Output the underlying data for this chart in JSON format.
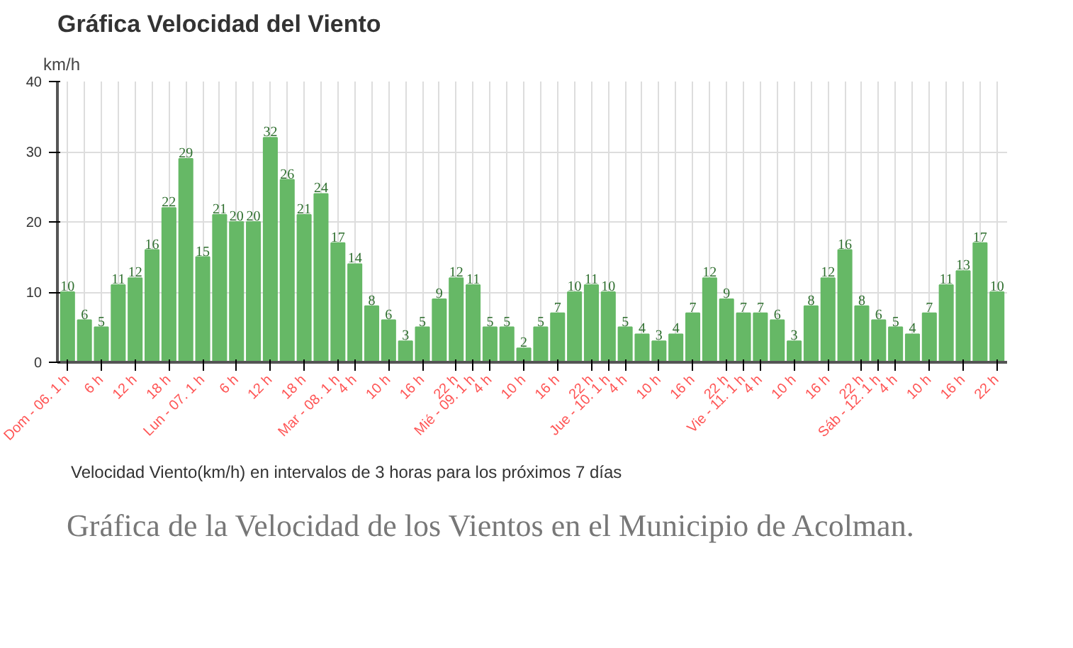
{
  "chart_data": {
    "type": "bar",
    "title": "Gráfica Velocidad del Viento",
    "ylabel": "km/h",
    "xlabel": "Velocidad Viento(km/h) en intervalos de 3 horas para los próximos 7 días",
    "annotations": [
      "Gráfica de la Velocidad de los Vientos en el Municipio de Acolman."
    ],
    "categories": [
      "Dom - 06. 1 h",
      null,
      "6 h",
      null,
      "12 h",
      null,
      "18 h",
      null,
      "Lun - 07. 1 h",
      null,
      "6 h",
      null,
      "12 h",
      null,
      "18 h",
      null,
      "Mar - 08. 1 h",
      "4 h",
      null,
      "10 h",
      null,
      "16 h",
      null,
      "22 h",
      "Mié - 09. 1 h",
      "4 h",
      null,
      "10 h",
      null,
      "16 h",
      null,
      "22 h",
      "Jue - 10. 1 h",
      "4 h",
      null,
      "10 h",
      null,
      "16 h",
      null,
      "22 h",
      "Vie - 11. 1 h",
      "4 h",
      null,
      "10 h",
      null,
      "16 h",
      null,
      "22 h",
      "Sáb - 12. 1 h",
      "4 h",
      null,
      "10 h",
      null,
      "16 h",
      null,
      "22 h"
    ],
    "values": [
      10,
      6,
      5,
      11,
      12,
      16,
      22,
      29,
      15,
      21,
      20,
      20,
      32,
      26,
      21,
      24,
      17,
      14,
      8,
      6,
      3,
      5,
      9,
      12,
      11,
      5,
      5,
      2,
      5,
      7,
      10,
      11,
      10,
      5,
      4,
      3,
      4,
      7,
      12,
      9,
      7,
      7,
      6,
      3,
      8,
      12,
      16,
      8,
      6,
      5,
      4,
      7,
      11,
      13,
      17,
      10
    ],
    "color": "#66b866",
    "data_labels": true,
    "grid": true,
    "ylim": [
      0,
      40
    ],
    "yticks": [
      0,
      10,
      20,
      30,
      40
    ]
  }
}
